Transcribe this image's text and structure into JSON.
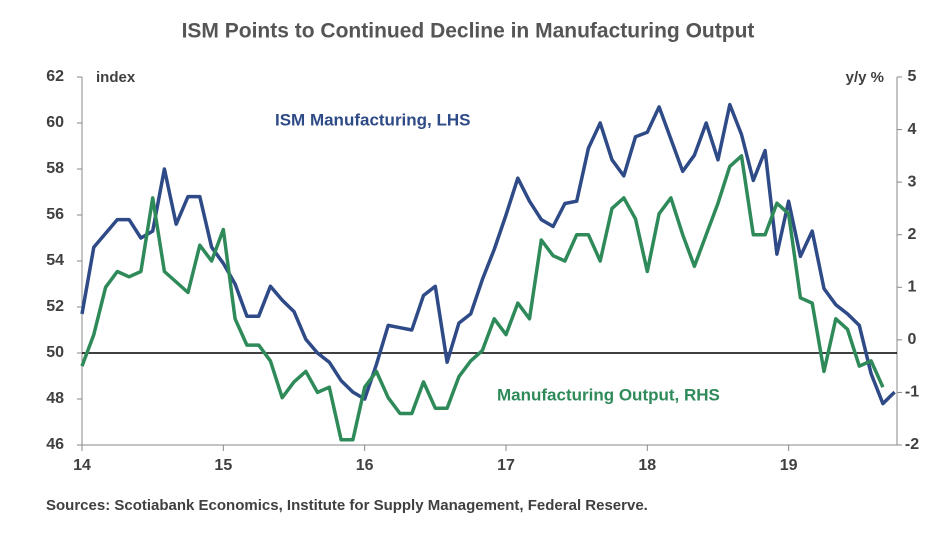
{
  "chart_data": {
    "type": "line",
    "title": "ISM Points to Continued Decline in Manufacturing Output",
    "y_label": "index",
    "y2_label": "y/y %",
    "source": "Sources: Scotiabank Economics, Institute for Supply Management, Federal Reserve.",
    "categories": [
      "14",
      null,
      null,
      null,
      null,
      null,
      null,
      null,
      null,
      null,
      null,
      null,
      "15",
      null,
      null,
      null,
      null,
      null,
      null,
      null,
      null,
      null,
      null,
      null,
      "16",
      null,
      null,
      null,
      null,
      null,
      null,
      null,
      null,
      null,
      null,
      null,
      "17",
      null,
      null,
      null,
      null,
      null,
      null,
      null,
      null,
      null,
      null,
      null,
      "18",
      null,
      null,
      null,
      null,
      null,
      null,
      null,
      null,
      null,
      null,
      null,
      "19",
      null,
      null,
      null,
      null,
      null,
      null,
      null,
      null,
      null
    ],
    "series": [
      {
        "name": "ISM Manufacturing, LHS",
        "color": "#2e4a87",
        "axis": "y",
        "values": [
          51.7,
          54.6,
          55.2,
          55.8,
          55.8,
          55.0,
          55.3,
          58.0,
          55.6,
          56.8,
          56.8,
          54.6,
          53.9,
          53.0,
          51.6,
          51.6,
          52.9,
          52.3,
          51.8,
          50.6,
          50.0,
          49.6,
          48.8,
          48.3,
          48.0,
          49.5,
          51.2,
          51.1,
          51.0,
          52.5,
          52.9,
          49.6,
          51.3,
          51.7,
          53.2,
          54.5,
          56.0,
          57.6,
          56.6,
          55.8,
          55.5,
          56.5,
          56.6,
          58.9,
          60.0,
          58.4,
          57.7,
          59.4,
          59.6,
          60.7,
          59.3,
          57.9,
          58.6,
          60.0,
          58.4,
          60.8,
          59.5,
          57.5,
          58.8,
          54.3,
          56.6,
          54.2,
          55.3,
          52.8,
          52.1,
          51.7,
          51.2,
          49.1,
          47.8,
          48.3
        ]
      },
      {
        "name": "Manufacturing Output, RHS",
        "color": "#2f8a5a",
        "axis": "y2",
        "values": [
          -0.5,
          0.1,
          1.0,
          1.3,
          1.2,
          1.3,
          2.7,
          1.3,
          1.1,
          0.9,
          1.8,
          1.5,
          2.1,
          0.4,
          -0.1,
          -0.1,
          -0.4,
          -1.1,
          -0.8,
          -0.6,
          -1.0,
          -0.9,
          -1.9,
          -1.9,
          -0.9,
          -0.6,
          -1.1,
          -1.4,
          -1.4,
          -0.8,
          -1.3,
          -1.3,
          -0.7,
          -0.4,
          -0.2,
          0.4,
          0.1,
          0.7,
          0.4,
          1.9,
          1.6,
          1.5,
          2.0,
          2.0,
          1.5,
          2.5,
          2.7,
          2.3,
          1.3,
          2.4,
          2.7,
          2.0,
          1.4,
          2.0,
          2.6,
          3.3,
          3.5,
          2.0,
          2.0,
          2.6,
          2.4,
          0.8,
          0.7,
          -0.6,
          0.4,
          0.2,
          -0.5,
          -0.4,
          -0.9,
          null
        ]
      }
    ],
    "ylim": [
      46,
      62
    ],
    "yticks": [
      46,
      48,
      50,
      52,
      54,
      56,
      58,
      60,
      62
    ],
    "y2lim": [
      -2,
      5
    ],
    "y2ticks": [
      -2,
      -1,
      0,
      1,
      2,
      3,
      4,
      5
    ],
    "reference_line": 50
  }
}
